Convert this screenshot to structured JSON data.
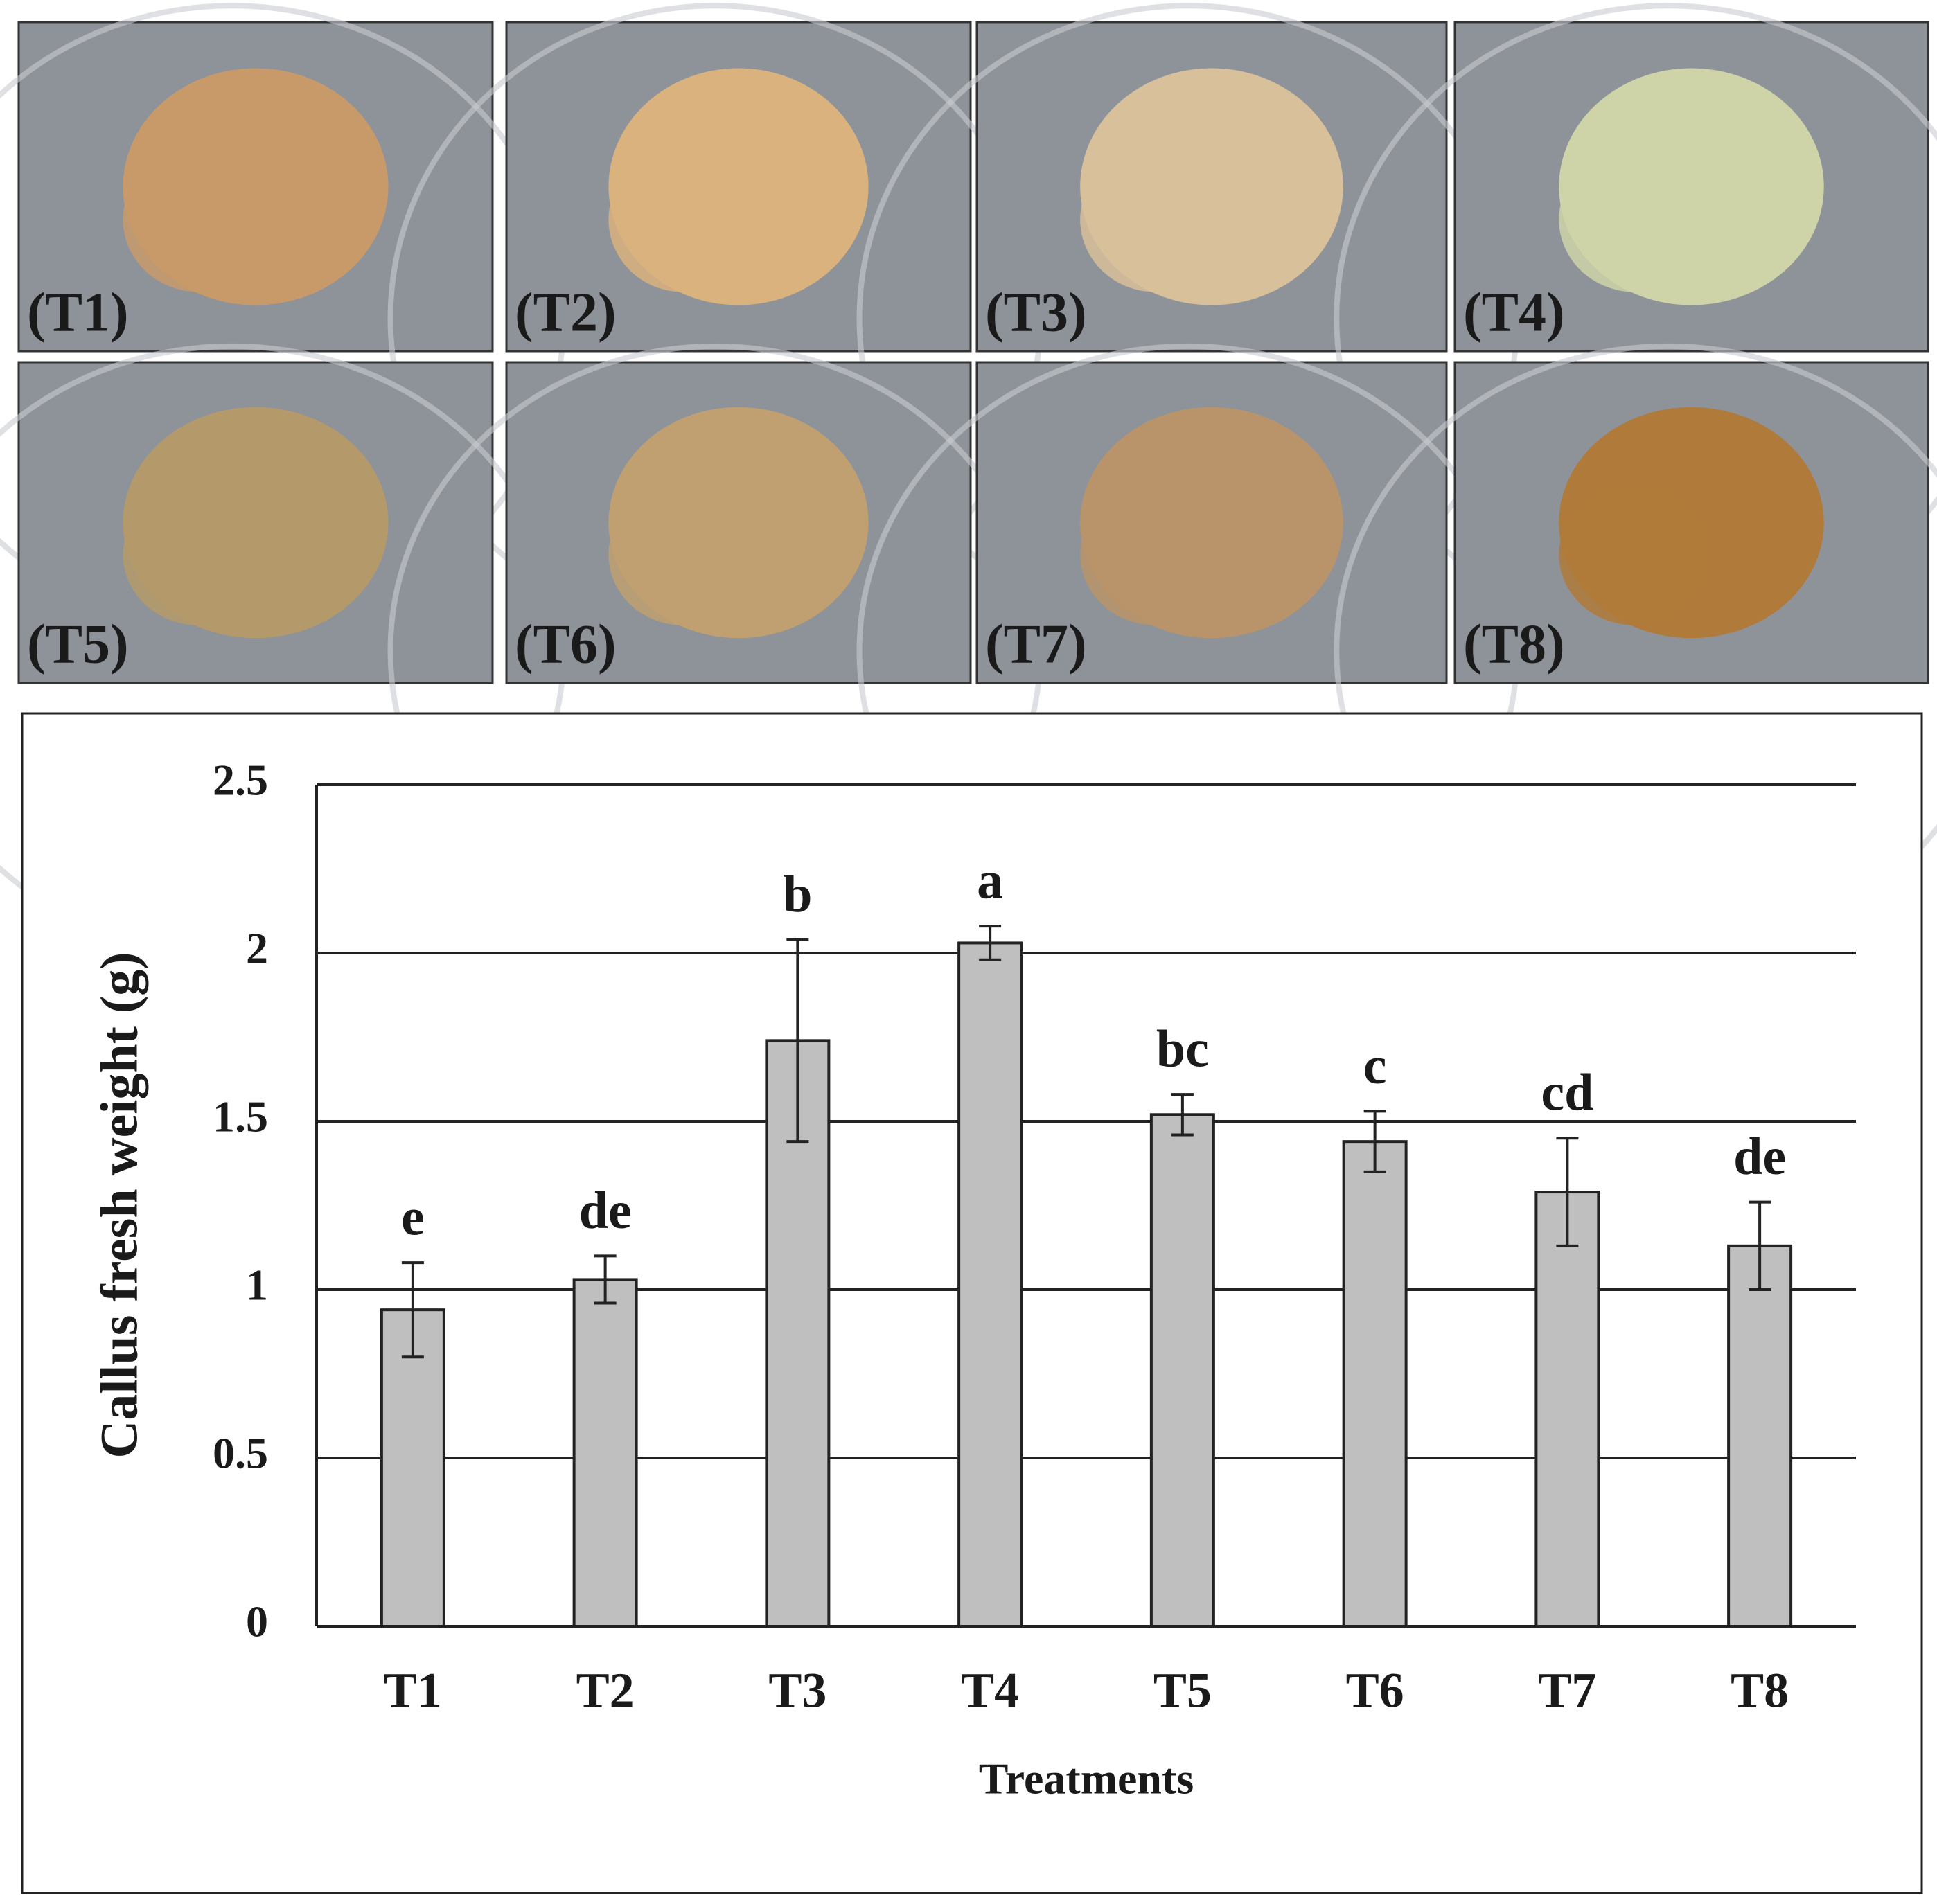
{
  "photo_labels": [
    "(T1)",
    "(T2)",
    "(T3)",
    "(T4)",
    "(T5)",
    "(T6)",
    "(T7)",
    "(T8)"
  ],
  "chart_data": {
    "type": "bar",
    "x_label": "Treatments",
    "y_label": "Callus  fresh weight (g)",
    "categories": [
      "T1",
      "T2",
      "T3",
      "T4",
      "T5",
      "T6",
      "T7",
      "T8"
    ],
    "values": [
      0.94,
      1.03,
      1.74,
      2.03,
      1.52,
      1.44,
      1.29,
      1.13
    ],
    "errors": [
      0.14,
      0.07,
      0.3,
      0.05,
      0.06,
      0.09,
      0.16,
      0.13
    ],
    "significance_letters": [
      "e",
      "de",
      "b",
      "a",
      "bc",
      "c",
      "cd",
      "de"
    ],
    "color": "#bfbfbf",
    "ylim": [
      0,
      2.5
    ],
    "yticks": [
      0,
      0.5,
      1,
      1.5,
      2,
      2.5
    ],
    "grid": true
  }
}
